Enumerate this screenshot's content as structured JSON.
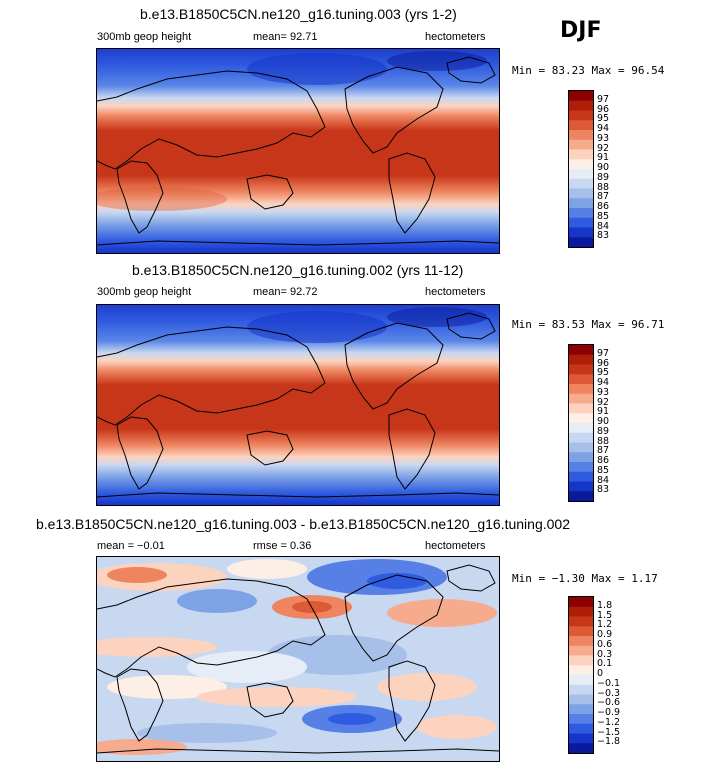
{
  "season": "DJF",
  "panels": [
    {
      "title": "b.e13.B1850C5CN.ne120_g16.tuning.003 (yrs 1-2)",
      "left_text": "300mb geop height",
      "mid_text": "mean=  92.71",
      "units": "hectometers",
      "minmax": "Min =  83.23 Max =  96.54",
      "colorbar": {
        "colors": [
          "#8b0000",
          "#b01e0a",
          "#c8361a",
          "#dd5a34",
          "#ee8560",
          "#f7ab8d",
          "#fcd3bf",
          "#fdeee6",
          "#e6edf7",
          "#c8d8f0",
          "#a6c0ea",
          "#7da2e6",
          "#5680e6",
          "#2f5be0",
          "#1635c9",
          "#0a1a9a"
        ],
        "labels": [
          "97",
          "96",
          "95",
          "94",
          "93",
          "92",
          "91",
          "90",
          "89",
          "88",
          "87",
          "86",
          "85",
          "84",
          "83"
        ]
      }
    },
    {
      "title": "b.e13.B1850C5CN.ne120_g16.tuning.002 (yrs 11-12)",
      "left_text": "300mb geop height",
      "mid_text": "mean=  92.72",
      "units": "hectometers",
      "minmax": "Min =  83.53 Max =  96.71",
      "colorbar": {
        "colors": [
          "#8b0000",
          "#b01e0a",
          "#c8361a",
          "#dd5a34",
          "#ee8560",
          "#f7ab8d",
          "#fcd3bf",
          "#fdeee6",
          "#e6edf7",
          "#c8d8f0",
          "#a6c0ea",
          "#7da2e6",
          "#5680e6",
          "#2f5be0",
          "#1635c9",
          "#0a1a9a"
        ],
        "labels": [
          "97",
          "96",
          "95",
          "94",
          "93",
          "92",
          "91",
          "90",
          "89",
          "88",
          "87",
          "86",
          "85",
          "84",
          "83"
        ]
      }
    },
    {
      "title": "b.e13.B1850C5CN.ne120_g16.tuning.003 - b.e13.B1850C5CN.ne120_g16.tuning.002",
      "left_text": "mean =  −0.01",
      "mid_text": "rmse =   0.36",
      "units": "hectometers",
      "minmax": "Min =  −1.30 Max =   1.17",
      "colorbar": {
        "colors": [
          "#8b0000",
          "#b01e0a",
          "#c8361a",
          "#dd5a34",
          "#ee8560",
          "#f7ab8d",
          "#fcd3bf",
          "#fdeee6",
          "#e6edf7",
          "#c8d8f0",
          "#a6c0ea",
          "#7da2e6",
          "#5680e6",
          "#2f5be0",
          "#1635c9",
          "#0a1a9a"
        ],
        "labels": [
          "1.8",
          "1.5",
          "1.2",
          "0.9",
          "0.6",
          "0.3",
          "0.1",
          "0",
          "−0.1",
          "−0.3",
          "−0.6",
          "−0.9",
          "−1.2",
          "−1.5",
          "−1.8"
        ]
      }
    }
  ]
}
